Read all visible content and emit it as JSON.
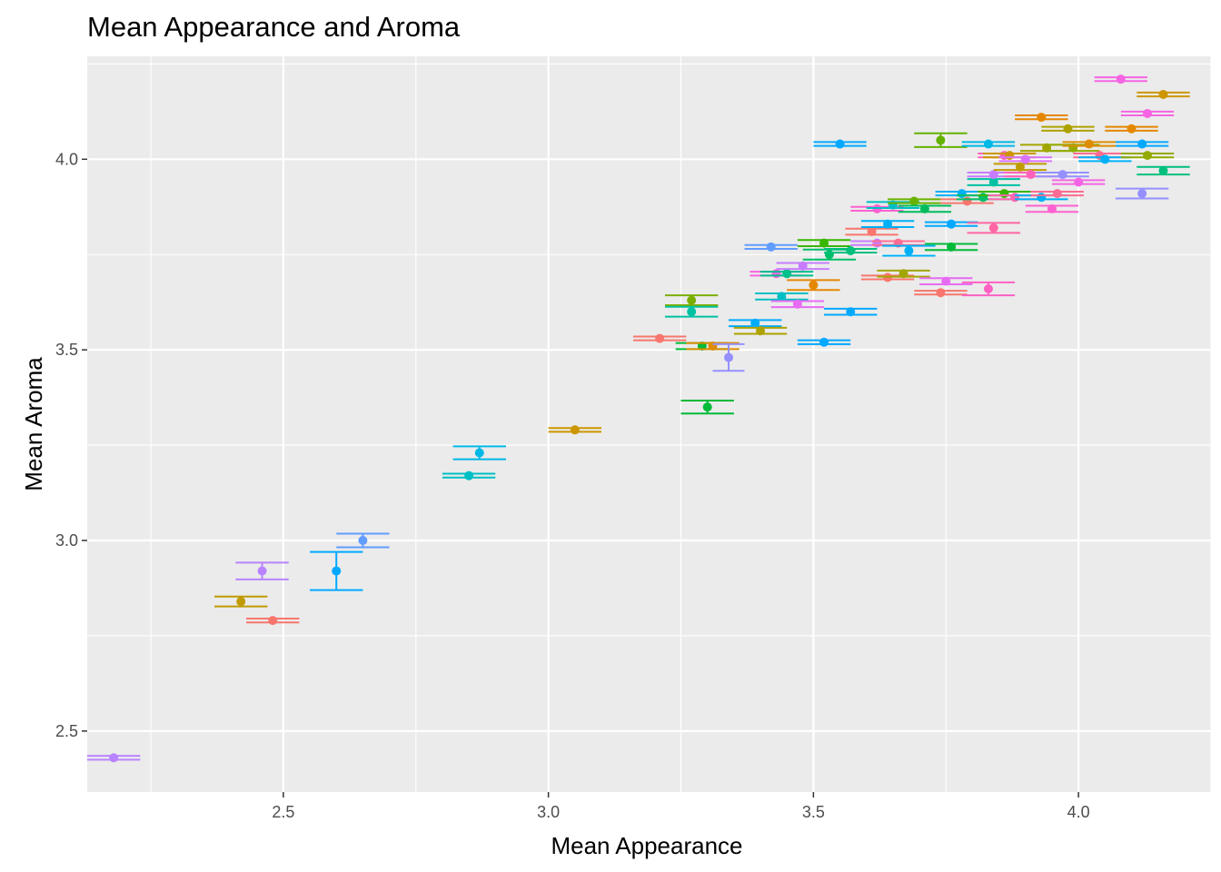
{
  "chart_data": {
    "type": "scatter",
    "title": "Mean Appearance and Aroma",
    "xlabel": "Mean Appearance",
    "ylabel": "Mean Aroma",
    "xlim": [
      2.13,
      4.25
    ],
    "ylim": [
      2.34,
      4.27
    ],
    "x_ticks": [
      2.5,
      3.0,
      3.5,
      4.0
    ],
    "x_tick_labels": [
      "2.5",
      "3.0",
      "3.5",
      "4.0"
    ],
    "y_ticks": [
      2.5,
      3.0,
      3.5,
      4.0
    ],
    "y_tick_labels": [
      "2.5",
      "3.0",
      "3.5",
      "4.0"
    ],
    "grid": true,
    "legend": "none",
    "error_bars": "crossbar (horizontal mean ± se in x, vertical ± se in y)",
    "points": [
      {
        "x": 2.18,
        "y": 2.43,
        "xerr": 0.05,
        "yerr": 0.005,
        "color": "#B983FF"
      },
      {
        "x": 2.42,
        "y": 2.84,
        "xerr": 0.05,
        "yerr": 0.013,
        "color": "#C09B00"
      },
      {
        "x": 2.46,
        "y": 2.92,
        "xerr": 0.05,
        "yerr": 0.022,
        "color": "#B983FF"
      },
      {
        "x": 2.48,
        "y": 2.79,
        "xerr": 0.05,
        "yerr": 0.005,
        "color": "#F8766D"
      },
      {
        "x": 2.6,
        "y": 2.92,
        "xerr": 0.05,
        "yerr": 0.05,
        "color": "#00A9FF"
      },
      {
        "x": 2.65,
        "y": 3.0,
        "xerr": 0.05,
        "yerr": 0.018,
        "color": "#619CFF"
      },
      {
        "x": 2.85,
        "y": 3.17,
        "xerr": 0.05,
        "yerr": 0.005,
        "color": "#00BFC4"
      },
      {
        "x": 2.87,
        "y": 3.23,
        "xerr": 0.05,
        "yerr": 0.017,
        "color": "#00B8E7"
      },
      {
        "x": 3.05,
        "y": 3.29,
        "xerr": 0.05,
        "yerr": 0.005,
        "color": "#CD9600"
      },
      {
        "x": 3.21,
        "y": 3.53,
        "xerr": 0.05,
        "yerr": 0.005,
        "color": "#F8766D"
      },
      {
        "x": 3.27,
        "y": 3.63,
        "xerr": 0.05,
        "yerr": 0.013,
        "color": "#7CAE00"
      },
      {
        "x": 3.27,
        "y": 3.6,
        "xerr": 0.05,
        "yerr": 0.013,
        "color": "#00C1A3"
      },
      {
        "x": 3.29,
        "y": 3.51,
        "xerr": 0.05,
        "yerr": 0.008,
        "color": "#00BA38"
      },
      {
        "x": 3.31,
        "y": 3.51,
        "xerr": 0.05,
        "yerr": 0.008,
        "color": "#DE8C00"
      },
      {
        "x": 3.3,
        "y": 3.35,
        "xerr": 0.05,
        "yerr": 0.017,
        "color": "#00BA38"
      },
      {
        "x": 3.34,
        "y": 3.48,
        "xerr": 0.03,
        "yerr": 0.035,
        "color": "#9590FF"
      },
      {
        "x": 3.39,
        "y": 3.57,
        "xerr": 0.05,
        "yerr": 0.008,
        "color": "#00ABFD"
      },
      {
        "x": 3.4,
        "y": 3.55,
        "xerr": 0.05,
        "yerr": 0.008,
        "color": "#AEA200"
      },
      {
        "x": 3.42,
        "y": 3.77,
        "xerr": 0.05,
        "yerr": 0.005,
        "color": "#619CFF"
      },
      {
        "x": 3.43,
        "y": 3.7,
        "xerr": 0.05,
        "yerr": 0.005,
        "color": "#F564E3"
      },
      {
        "x": 3.44,
        "y": 3.64,
        "xerr": 0.05,
        "yerr": 0.008,
        "color": "#00BFC4"
      },
      {
        "x": 3.45,
        "y": 3.7,
        "xerr": 0.05,
        "yerr": 0.005,
        "color": "#00C08B"
      },
      {
        "x": 3.47,
        "y": 3.62,
        "xerr": 0.05,
        "yerr": 0.008,
        "color": "#E76BF3"
      },
      {
        "x": 3.48,
        "y": 3.72,
        "xerr": 0.05,
        "yerr": 0.008,
        "color": "#C77CFF"
      },
      {
        "x": 3.5,
        "y": 3.67,
        "xerr": 0.05,
        "yerr": 0.013,
        "color": "#E58700"
      },
      {
        "x": 3.52,
        "y": 3.52,
        "xerr": 0.05,
        "yerr": 0.005,
        "color": "#00A9FF"
      },
      {
        "x": 3.52,
        "y": 3.78,
        "xerr": 0.05,
        "yerr": 0.008,
        "color": "#39B600"
      },
      {
        "x": 3.53,
        "y": 3.75,
        "xerr": 0.05,
        "yerr": 0.013,
        "color": "#00BE67"
      },
      {
        "x": 3.55,
        "y": 4.04,
        "xerr": 0.05,
        "yerr": 0.005,
        "color": "#00A9FF"
      },
      {
        "x": 3.57,
        "y": 3.6,
        "xerr": 0.05,
        "yerr": 0.008,
        "color": "#00A9FF"
      },
      {
        "x": 3.57,
        "y": 3.76,
        "xerr": 0.05,
        "yerr": 0.005,
        "color": "#00BF7D"
      },
      {
        "x": 3.61,
        "y": 3.81,
        "xerr": 0.05,
        "yerr": 0.008,
        "color": "#F8766D"
      },
      {
        "x": 3.62,
        "y": 3.87,
        "xerr": 0.05,
        "yerr": 0.005,
        "color": "#FD61D1"
      },
      {
        "x": 3.62,
        "y": 3.78,
        "xerr": 0.05,
        "yerr": 0.005,
        "color": "#C77CFF"
      },
      {
        "x": 3.64,
        "y": 3.69,
        "xerr": 0.05,
        "yerr": 0.005,
        "color": "#F8766D"
      },
      {
        "x": 3.64,
        "y": 3.83,
        "xerr": 0.05,
        "yerr": 0.008,
        "color": "#00B0F6"
      },
      {
        "x": 3.65,
        "y": 3.88,
        "xerr": 0.05,
        "yerr": 0.008,
        "color": "#00BFC4"
      },
      {
        "x": 3.66,
        "y": 3.78,
        "xerr": 0.05,
        "yerr": 0.005,
        "color": "#FF6C91"
      },
      {
        "x": 3.67,
        "y": 3.7,
        "xerr": 0.05,
        "yerr": 0.008,
        "color": "#A3A500"
      },
      {
        "x": 3.68,
        "y": 3.76,
        "xerr": 0.05,
        "yerr": 0.013,
        "color": "#00B0F6"
      },
      {
        "x": 3.69,
        "y": 3.89,
        "xerr": 0.05,
        "yerr": 0.005,
        "color": "#6BB100"
      },
      {
        "x": 3.71,
        "y": 3.87,
        "xerr": 0.05,
        "yerr": 0.008,
        "color": "#00BD5C"
      },
      {
        "x": 3.74,
        "y": 4.05,
        "xerr": 0.05,
        "yerr": 0.018,
        "color": "#64B200"
      },
      {
        "x": 3.74,
        "y": 3.65,
        "xerr": 0.05,
        "yerr": 0.005,
        "color": "#F8766D"
      },
      {
        "x": 3.75,
        "y": 3.68,
        "xerr": 0.05,
        "yerr": 0.008,
        "color": "#E76BF3"
      },
      {
        "x": 3.76,
        "y": 3.77,
        "xerr": 0.05,
        "yerr": 0.008,
        "color": "#00BA38"
      },
      {
        "x": 3.76,
        "y": 3.83,
        "xerr": 0.05,
        "yerr": 0.005,
        "color": "#00A9FF"
      },
      {
        "x": 3.78,
        "y": 3.91,
        "xerr": 0.05,
        "yerr": 0.005,
        "color": "#00B0F6"
      },
      {
        "x": 3.79,
        "y": 3.89,
        "xerr": 0.05,
        "yerr": 0.005,
        "color": "#F8766D"
      },
      {
        "x": 3.82,
        "y": 3.9,
        "xerr": 0.05,
        "yerr": 0.005,
        "color": "#00BE67"
      },
      {
        "x": 3.83,
        "y": 4.04,
        "xerr": 0.05,
        "yerr": 0.005,
        "color": "#00B8E7"
      },
      {
        "x": 3.83,
        "y": 3.66,
        "xerr": 0.05,
        "yerr": 0.017,
        "color": "#FF61C3"
      },
      {
        "x": 3.84,
        "y": 3.82,
        "xerr": 0.05,
        "yerr": 0.013,
        "color": "#FF67A4"
      },
      {
        "x": 3.84,
        "y": 3.94,
        "xerr": 0.05,
        "yerr": 0.008,
        "color": "#00C1A3"
      },
      {
        "x": 3.84,
        "y": 3.96,
        "xerr": 0.05,
        "yerr": 0.005,
        "color": "#C77CFF"
      },
      {
        "x": 3.86,
        "y": 4.01,
        "xerr": 0.05,
        "yerr": 0.005,
        "color": "#FF62BC"
      },
      {
        "x": 3.86,
        "y": 3.91,
        "xerr": 0.05,
        "yerr": 0.005,
        "color": "#39B600"
      },
      {
        "x": 3.87,
        "y": 4.01,
        "xerr": 0.05,
        "yerr": 0.005,
        "color": "#CD9600"
      },
      {
        "x": 3.88,
        "y": 3.9,
        "xerr": 0.05,
        "yerr": 0.005,
        "color": "#FF64B0"
      },
      {
        "x": 3.89,
        "y": 3.98,
        "xerr": 0.05,
        "yerr": 0.008,
        "color": "#C09B00"
      },
      {
        "x": 3.9,
        "y": 4.0,
        "xerr": 0.05,
        "yerr": 0.005,
        "color": "#DB72FB"
      },
      {
        "x": 3.91,
        "y": 3.96,
        "xerr": 0.05,
        "yerr": 0.005,
        "color": "#FF62BC"
      },
      {
        "x": 3.93,
        "y": 4.11,
        "xerr": 0.05,
        "yerr": 0.005,
        "color": "#E58700"
      },
      {
        "x": 3.93,
        "y": 3.9,
        "xerr": 0.05,
        "yerr": 0.005,
        "color": "#00B0F6"
      },
      {
        "x": 3.94,
        "y": 4.03,
        "xerr": 0.05,
        "yerr": 0.008,
        "color": "#A3A500"
      },
      {
        "x": 3.95,
        "y": 3.87,
        "xerr": 0.05,
        "yerr": 0.008,
        "color": "#FD61D1"
      },
      {
        "x": 3.96,
        "y": 3.91,
        "xerr": 0.05,
        "yerr": 0.005,
        "color": "#FF6C91"
      },
      {
        "x": 3.97,
        "y": 3.96,
        "xerr": 0.05,
        "yerr": 0.005,
        "color": "#9590FF"
      },
      {
        "x": 3.98,
        "y": 4.08,
        "xerr": 0.05,
        "yerr": 0.005,
        "color": "#AEA200"
      },
      {
        "x": 3.99,
        "y": 4.03,
        "xerr": 0.05,
        "yerr": 0.008,
        "color": "#93AA00"
      },
      {
        "x": 4.0,
        "y": 3.94,
        "xerr": 0.05,
        "yerr": 0.005,
        "color": "#F564E3"
      },
      {
        "x": 4.02,
        "y": 4.04,
        "xerr": 0.05,
        "yerr": 0.005,
        "color": "#DE8C00"
      },
      {
        "x": 4.04,
        "y": 4.01,
        "xerr": 0.05,
        "yerr": 0.005,
        "color": "#FF6C91"
      },
      {
        "x": 4.05,
        "y": 4.0,
        "xerr": 0.05,
        "yerr": 0.005,
        "color": "#00B0F6"
      },
      {
        "x": 4.08,
        "y": 4.21,
        "xerr": 0.05,
        "yerr": 0.005,
        "color": "#F564E3"
      },
      {
        "x": 4.1,
        "y": 4.08,
        "xerr": 0.05,
        "yerr": 0.005,
        "color": "#E58700"
      },
      {
        "x": 4.12,
        "y": 4.04,
        "xerr": 0.05,
        "yerr": 0.005,
        "color": "#00A9FF"
      },
      {
        "x": 4.12,
        "y": 3.91,
        "xerr": 0.05,
        "yerr": 0.013,
        "color": "#9590FF"
      },
      {
        "x": 4.13,
        "y": 4.12,
        "xerr": 0.05,
        "yerr": 0.005,
        "color": "#F564E3"
      },
      {
        "x": 4.13,
        "y": 4.01,
        "xerr": 0.05,
        "yerr": 0.005,
        "color": "#93AA00"
      },
      {
        "x": 4.16,
        "y": 4.17,
        "xerr": 0.05,
        "yerr": 0.005,
        "color": "#CD9600"
      },
      {
        "x": 4.16,
        "y": 3.97,
        "xerr": 0.05,
        "yerr": 0.01,
        "color": "#00BF7D"
      }
    ]
  }
}
